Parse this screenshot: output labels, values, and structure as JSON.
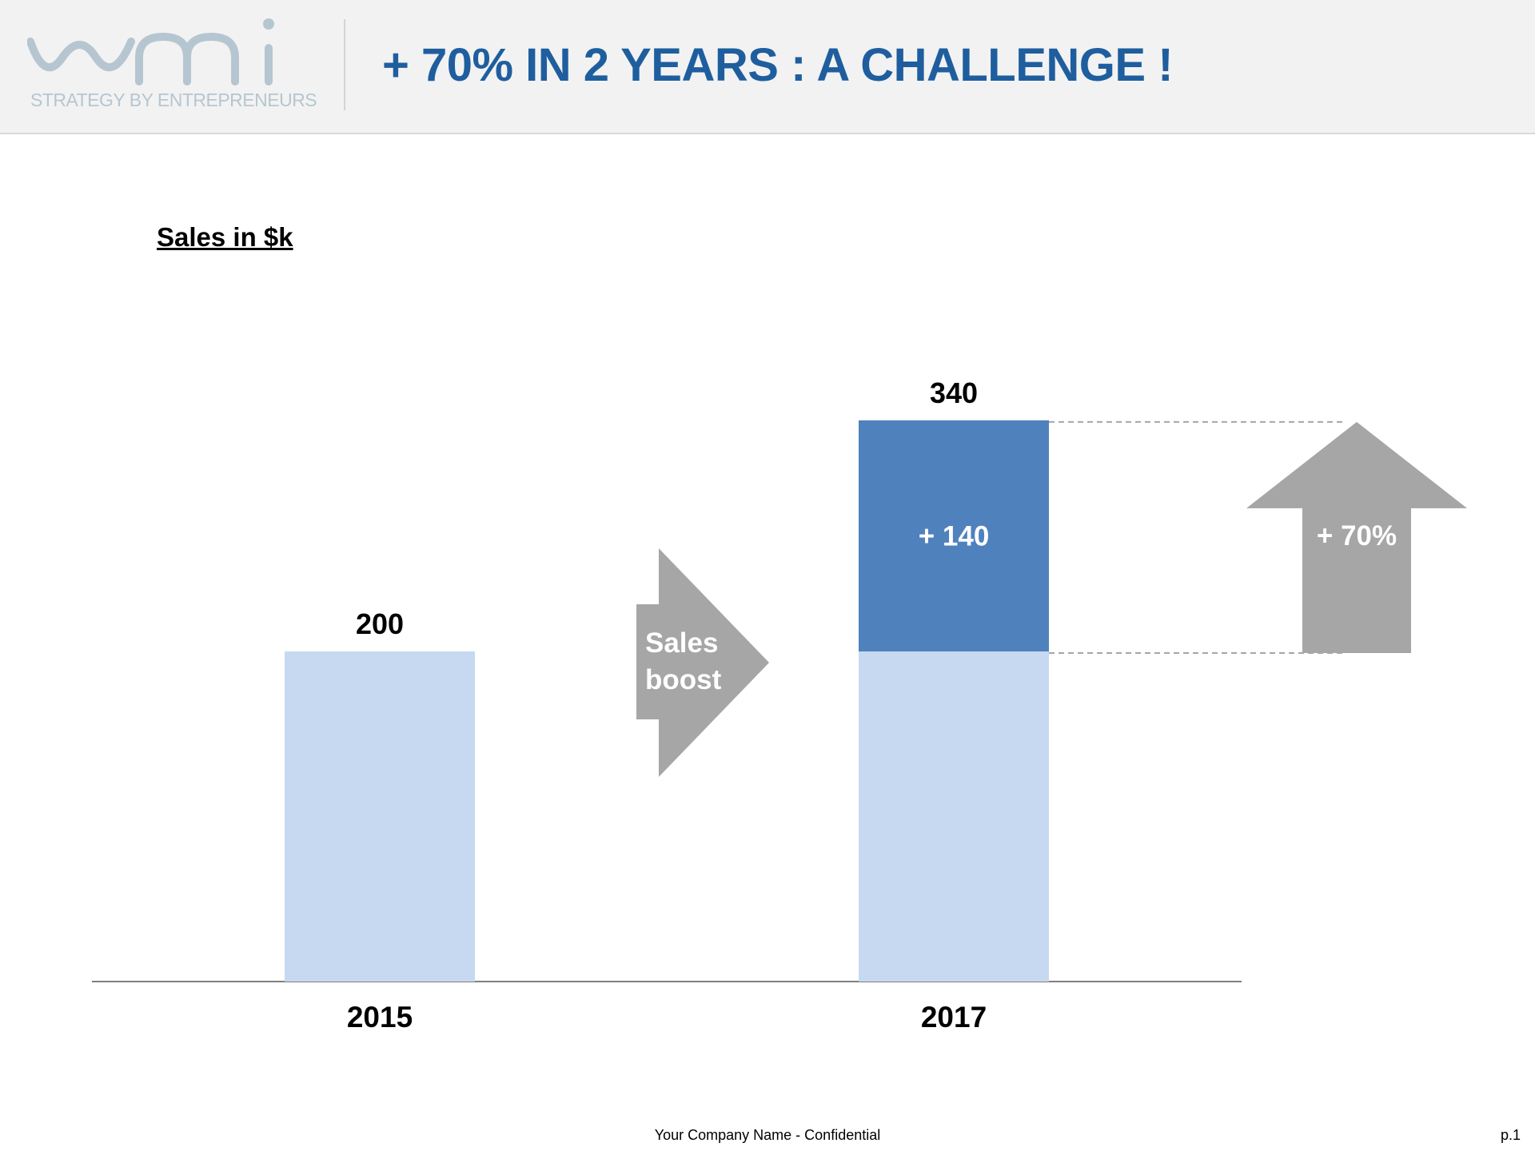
{
  "header": {
    "logo_text": "wmi",
    "tagline": "STRATEGY BY ENTREPRENEURS",
    "title": "+ 70% IN 2 YEARS : A CHALLENGE !"
  },
  "chart_data": {
    "type": "bar",
    "title": "",
    "unit_label": "Sales in $k",
    "categories": [
      "2015",
      "2017"
    ],
    "series": [
      {
        "values": [
          200,
          200
        ]
      },
      {
        "values": [
          0,
          140
        ]
      }
    ],
    "totals": [
      200,
      340
    ],
    "increase_label": "+ 140",
    "increase_value": 140,
    "growth_label": "+ 70%",
    "growth_percent": 70,
    "arrow_label": [
      "Sales",
      "boost"
    ],
    "ylim": [
      0,
      420
    ],
    "grid": false,
    "legend": "none",
    "colors": {
      "base": "#c6d9f1",
      "increase": "#4f81bd",
      "arrow": "#a6a6a6",
      "title": "#1f5e9e",
      "axis": "#7f7f7f"
    }
  },
  "footer": {
    "confidential": "Your Company Name - Confidential",
    "page": "p.1"
  }
}
